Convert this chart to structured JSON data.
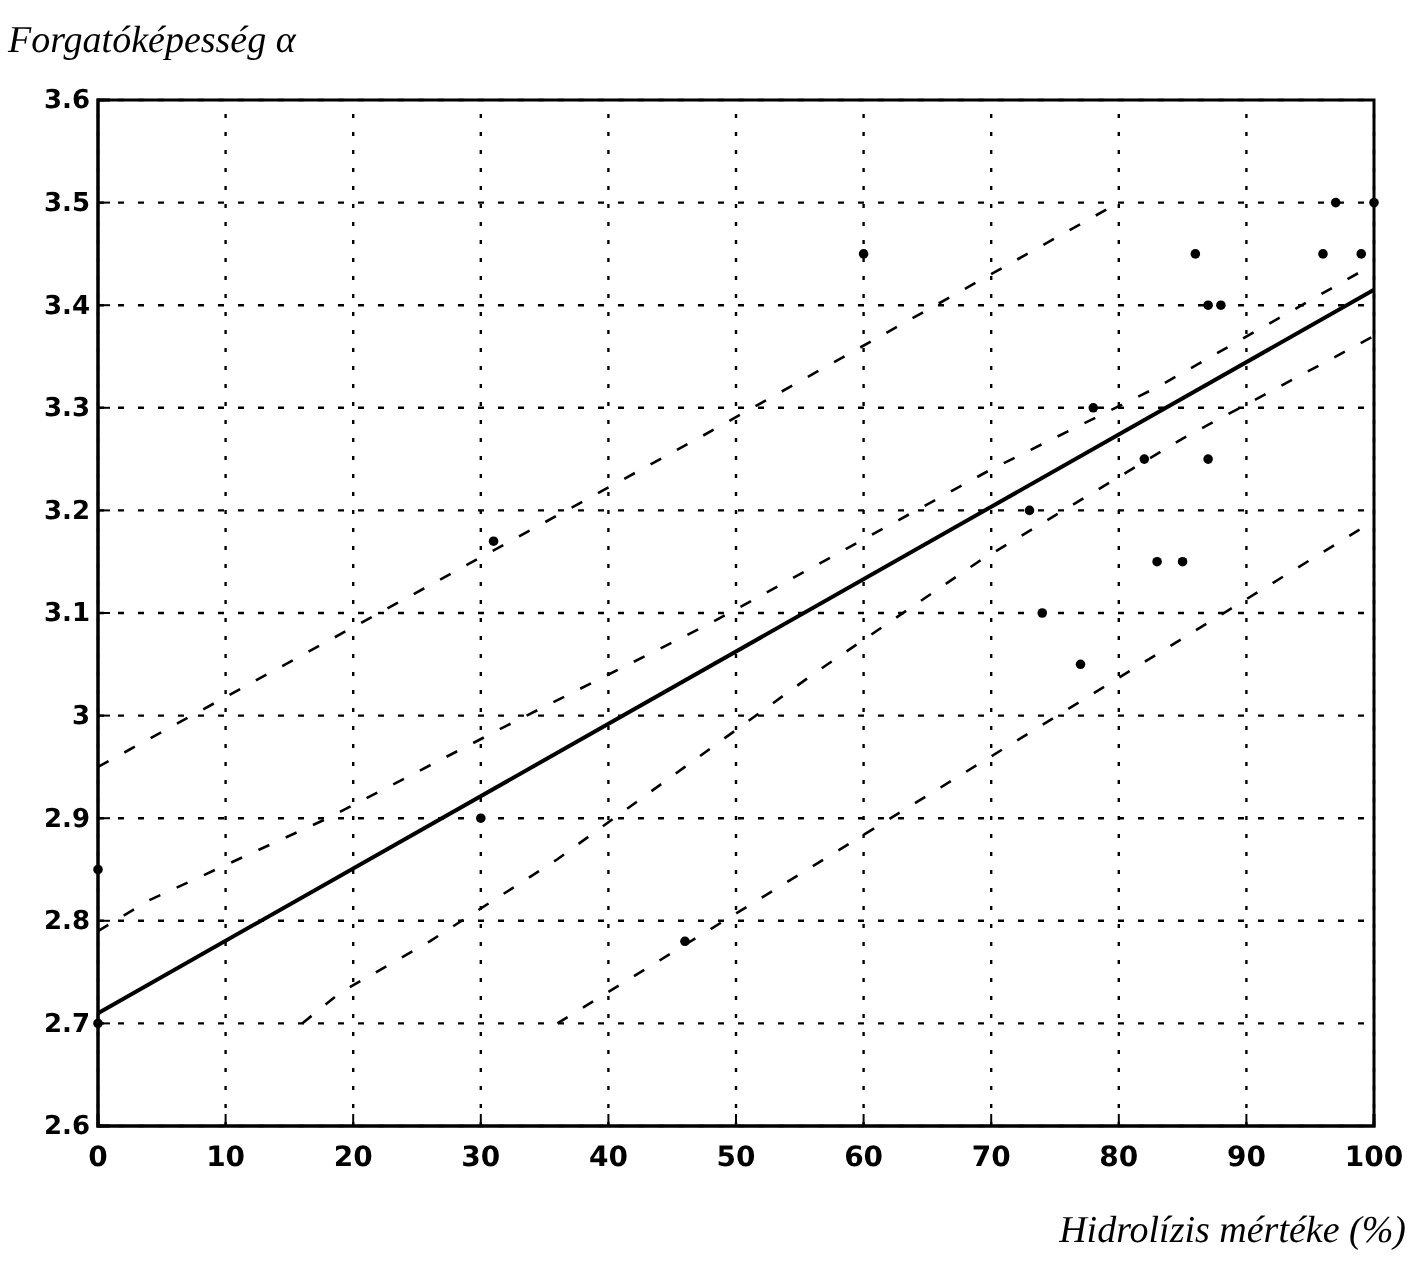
{
  "chart_data": {
    "type": "scatter",
    "ylabel": "Forgatóképesség α",
    "xlabel": "Hidrolízis mértéke (%)",
    "xlim": [
      0,
      100
    ],
    "xticks": [
      0,
      10,
      20,
      30,
      40,
      50,
      60,
      70,
      80,
      90,
      100
    ],
    "ylim": [
      2.6,
      3.6
    ],
    "yticks": [
      2.6,
      2.7,
      2.8,
      2.9,
      3,
      3.1,
      3.2,
      3.3,
      3.4,
      3.5,
      3.6
    ],
    "grid": true,
    "series": [
      {
        "color": "#000000",
        "marker": "circle",
        "x": [
          0,
          0,
          30,
          31,
          46,
          60,
          73,
          74,
          77,
          78,
          82,
          83,
          85,
          86,
          87,
          87,
          88,
          96,
          97,
          99,
          100
        ],
        "values": [
          2.85,
          2.7,
          2.9,
          3.17,
          2.78,
          3.45,
          3.2,
          3.1,
          3.05,
          3.3,
          3.25,
          3.15,
          3.15,
          3.45,
          3.25,
          3.4,
          3.4,
          3.45,
          3.5,
          3.45,
          3.5
        ]
      },
      {
        "type": "line",
        "color": "#000000",
        "line_style": "solid",
        "marker": "none",
        "x": [
          0,
          100
        ],
        "values": [
          2.71,
          3.415
        ]
      },
      {
        "type": "line",
        "color": "#000000",
        "line_style": "dashed",
        "marker": "none",
        "x": [
          0,
          47,
          80
        ],
        "values": [
          2.95,
          3.27,
          3.5
        ]
      },
      {
        "type": "line",
        "color": "#000000",
        "line_style": "dashed",
        "marker": "none",
        "x": [
          0,
          4,
          18,
          32,
          48,
          70,
          83,
          100
        ],
        "values": [
          2.79,
          2.82,
          2.9,
          2.99,
          3.09,
          3.24,
          3.32,
          3.44
        ]
      },
      {
        "type": "line",
        "color": "#000000",
        "line_style": "dashed",
        "marker": "none",
        "x": [
          16,
          19,
          26,
          36,
          46,
          56,
          69,
          85,
          100
        ],
        "values": [
          2.7,
          2.73,
          2.78,
          2.86,
          2.95,
          3.04,
          3.15,
          3.27,
          3.37
        ]
      },
      {
        "type": "line",
        "color": "#000000",
        "line_style": "dashed",
        "marker": "none",
        "x": [
          36,
          100
        ],
        "values": [
          2.7,
          3.19
        ]
      }
    ]
  }
}
